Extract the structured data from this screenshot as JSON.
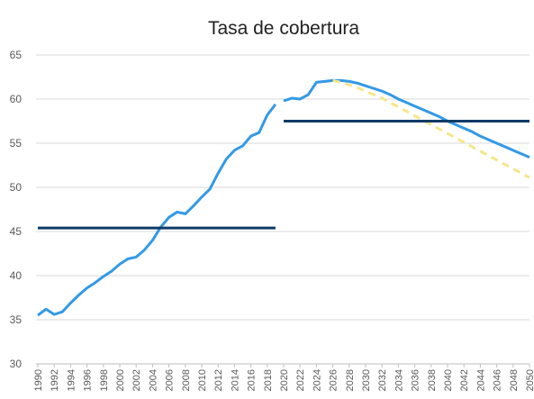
{
  "chart_data": {
    "type": "line",
    "title": "Tasa de cobertura",
    "x": [
      1990,
      1991,
      1992,
      1993,
      1994,
      1995,
      1996,
      1997,
      1998,
      1999,
      2000,
      2001,
      2002,
      2003,
      2004,
      2005,
      2006,
      2007,
      2008,
      2009,
      2010,
      2011,
      2012,
      2013,
      2014,
      2015,
      2016,
      2017,
      2018,
      2019,
      2020,
      2021,
      2022,
      2023,
      2024,
      2025,
      2026,
      2027,
      2028,
      2029,
      2030,
      2031,
      2032,
      2033,
      2034,
      2035,
      2036,
      2037,
      2038,
      2039,
      2040,
      2041,
      2042,
      2043,
      2044,
      2045,
      2046,
      2047,
      2048,
      2049,
      2050
    ],
    "series": [
      {
        "color": "#3399e6",
        "dash": false,
        "values": [
          35.5,
          36.2,
          35.6,
          35.9,
          36.9,
          37.8,
          38.6,
          39.2,
          39.9,
          40.5,
          41.3,
          41.9,
          42.1,
          42.9,
          44.0,
          45.5,
          46.6,
          47.2,
          47.0,
          47.9,
          48.9,
          49.8,
          51.6,
          53.2,
          54.2,
          54.7,
          55.8,
          56.2,
          58.2,
          59.4,
          null,
          null,
          null,
          null,
          null,
          null,
          null,
          null,
          null,
          null,
          null,
          null,
          null,
          null,
          null,
          null,
          null,
          null,
          null,
          null,
          null,
          null,
          null,
          null,
          null,
          null,
          null,
          null,
          null,
          null,
          null
        ]
      },
      {
        "color": "#3399e6",
        "dash": false,
        "values": [
          null,
          null,
          null,
          null,
          null,
          null,
          null,
          null,
          null,
          null,
          null,
          null,
          null,
          null,
          null,
          null,
          null,
          null,
          null,
          null,
          null,
          null,
          null,
          null,
          null,
          null,
          null,
          null,
          null,
          null,
          59.8,
          60.1,
          60.0,
          60.5,
          61.9,
          62.0,
          62.1,
          62.1,
          62.0,
          61.8,
          61.5,
          61.2,
          60.9,
          60.5,
          60.0,
          59.6,
          59.2,
          58.8,
          58.4,
          58.0,
          57.5,
          57.1,
          56.7,
          56.3,
          55.8,
          55.4,
          55.0,
          54.6,
          54.2,
          53.8,
          53.4
        ]
      },
      {
        "color": "#f5e68a",
        "dash": true,
        "values": [
          null,
          null,
          null,
          null,
          null,
          null,
          null,
          null,
          null,
          null,
          null,
          null,
          null,
          null,
          null,
          null,
          null,
          null,
          null,
          null,
          null,
          null,
          null,
          null,
          null,
          null,
          null,
          null,
          null,
          null,
          null,
          null,
          null,
          null,
          null,
          null,
          62.1,
          61.9,
          61.6,
          61.3,
          60.9,
          60.5,
          60.1,
          59.6,
          59.1,
          58.6,
          58.1,
          57.6,
          57.1,
          56.6,
          56.1,
          55.6,
          55.1,
          54.6,
          54.1,
          53.6,
          53.1,
          52.6,
          52.1,
          51.6,
          51.1
        ]
      },
      {
        "color": "#0d3b66",
        "dash": false,
        "values": [
          45.4,
          45.4,
          45.4,
          45.4,
          45.4,
          45.4,
          45.4,
          45.4,
          45.4,
          45.4,
          45.4,
          45.4,
          45.4,
          45.4,
          45.4,
          45.4,
          45.4,
          45.4,
          45.4,
          45.4,
          45.4,
          45.4,
          45.4,
          45.4,
          45.4,
          45.4,
          45.4,
          45.4,
          45.4,
          45.4,
          null,
          null,
          null,
          null,
          null,
          null,
          null,
          null,
          null,
          null,
          null,
          null,
          null,
          null,
          null,
          null,
          null,
          null,
          null,
          null,
          null,
          null,
          null,
          null,
          null,
          null,
          null,
          null,
          null,
          null,
          null
        ]
      },
      {
        "color": "#0d3b66",
        "dash": false,
        "values": [
          null,
          null,
          null,
          null,
          null,
          null,
          null,
          null,
          null,
          null,
          null,
          null,
          null,
          null,
          null,
          null,
          null,
          null,
          null,
          null,
          null,
          null,
          null,
          null,
          null,
          null,
          null,
          null,
          null,
          null,
          57.5,
          57.5,
          57.5,
          57.5,
          57.5,
          57.5,
          57.5,
          57.5,
          57.5,
          57.5,
          57.5,
          57.5,
          57.5,
          57.5,
          57.5,
          57.5,
          57.5,
          57.5,
          57.5,
          57.5,
          57.5,
          57.5,
          57.5,
          57.5,
          57.5,
          57.5,
          57.5,
          57.5,
          57.5,
          57.5,
          57.5
        ]
      }
    ],
    "xlim": [
      1990,
      2050
    ],
    "xticks": [
      1990,
      1992,
      1994,
      1996,
      1998,
      2000,
      2002,
      2004,
      2006,
      2008,
      2010,
      2012,
      2014,
      2016,
      2018,
      2020,
      2022,
      2024,
      2026,
      2028,
      2030,
      2032,
      2034,
      2036,
      2038,
      2040,
      2042,
      2044,
      2046,
      2048,
      2050
    ],
    "ylim": [
      30,
      65
    ],
    "yticks": [
      30,
      35,
      40,
      45,
      50,
      55,
      60,
      65
    ],
    "grid": true
  }
}
